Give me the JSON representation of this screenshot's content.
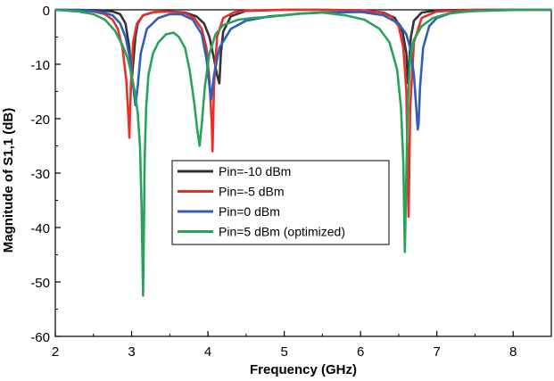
{
  "chart_data": {
    "type": "line",
    "title": "",
    "xlabel": "Frequency (GHz)",
    "ylabel": "Magnitude of S1,1 (dB)",
    "xlim": [
      2,
      8.5
    ],
    "ylim": [
      -60,
      0
    ],
    "xticks": [
      2,
      3,
      4,
      5,
      6,
      7,
      8
    ],
    "yticks": [
      0,
      -10,
      -20,
      -30,
      -40,
      -50,
      -60
    ],
    "grid": false,
    "legend_position": "center-left",
    "series": [
      {
        "name": "Pin=-10 dBm",
        "color": "#333333",
        "x": [
          2.0,
          2.3,
          2.6,
          2.75,
          2.85,
          2.92,
          2.97,
          3.0,
          3.02,
          3.05,
          3.08,
          3.15,
          3.3,
          3.5,
          3.7,
          3.85,
          3.95,
          4.02,
          4.08,
          4.12,
          4.15,
          4.17,
          4.2,
          4.3,
          4.5,
          5.0,
          5.5,
          6.0,
          6.3,
          6.45,
          6.55,
          6.6,
          6.62,
          6.64,
          6.66,
          6.7,
          6.8,
          7.0,
          7.5,
          8.0,
          8.5
        ],
        "y": [
          0,
          0,
          -0.1,
          -0.3,
          -0.8,
          -2.5,
          -7,
          -13,
          -10,
          -5,
          -2.5,
          -1,
          -0.4,
          -0.3,
          -0.5,
          -1.2,
          -2.5,
          -5,
          -9,
          -12,
          -13.5,
          -8,
          -4,
          -1.2,
          -0.2,
          0,
          0,
          -0.1,
          -0.5,
          -1.5,
          -4,
          -8,
          -13.5,
          -9,
          -5,
          -2,
          -0.5,
          -0.1,
          0,
          0,
          0
        ]
      },
      {
        "name": "Pin=-5 dBm",
        "color": "#e8302a",
        "x": [
          2.0,
          2.3,
          2.5,
          2.65,
          2.75,
          2.82,
          2.88,
          2.93,
          2.96,
          2.97,
          2.99,
          3.02,
          3.07,
          3.15,
          3.3,
          3.5,
          3.7,
          3.82,
          3.92,
          3.98,
          4.02,
          4.05,
          4.06,
          4.08,
          4.12,
          4.2,
          4.35,
          4.6,
          5.0,
          5.5,
          6.0,
          6.25,
          6.4,
          6.5,
          6.56,
          6.6,
          6.62,
          6.63,
          6.65,
          6.7,
          6.8,
          7.0,
          7.5,
          8.0,
          8.5
        ],
        "y": [
          0,
          -0.1,
          -0.3,
          -0.8,
          -1.8,
          -3.5,
          -7,
          -13,
          -20,
          -23.5,
          -14,
          -6,
          -2.5,
          -1,
          -0.4,
          -0.3,
          -0.6,
          -1.5,
          -3.5,
          -7,
          -13,
          -21,
          -26,
          -14,
          -5,
          -1.5,
          -0.4,
          -0.1,
          0,
          0,
          -0.1,
          -0.4,
          -1.2,
          -3,
          -7,
          -15,
          -32,
          -38,
          -18,
          -6,
          -1.5,
          -0.3,
          0,
          0,
          0
        ]
      },
      {
        "name": "Pin=0 dBm",
        "color": "#2f5fb8",
        "x": [
          2.0,
          2.4,
          2.6,
          2.75,
          2.85,
          2.92,
          2.98,
          3.02,
          3.05,
          3.08,
          3.12,
          3.2,
          3.35,
          3.5,
          3.65,
          3.8,
          3.92,
          3.98,
          4.02,
          4.04,
          4.08,
          4.15,
          4.3,
          4.5,
          4.8,
          5.0,
          5.2,
          5.5,
          6.0,
          6.3,
          6.5,
          6.6,
          6.65,
          6.7,
          6.73,
          6.75,
          6.76,
          6.78,
          6.82,
          6.9,
          7.0,
          7.2,
          7.5,
          8.0,
          8.5
        ],
        "y": [
          0,
          -0.1,
          -0.4,
          -1,
          -2.5,
          -5,
          -9,
          -14,
          -17.5,
          -14,
          -8,
          -3.5,
          -1.5,
          -0.8,
          -0.8,
          -1.8,
          -4.5,
          -9,
          -14,
          -16.5,
          -12,
          -7,
          -3.5,
          -2,
          -1.2,
          -1,
          -0.7,
          -0.5,
          -0.4,
          -1,
          -2.5,
          -4.5,
          -7,
          -12,
          -18,
          -22,
          -21,
          -14,
          -7,
          -3,
          -1.5,
          -0.5,
          -0.2,
          0,
          0
        ]
      },
      {
        "name": "Pin=5 dBm (optimized)",
        "color": "#2aa35a",
        "x": [
          2.0,
          2.3,
          2.5,
          2.65,
          2.78,
          2.88,
          2.95,
          3.0,
          3.04,
          3.08,
          3.11,
          3.13,
          3.15,
          3.16,
          3.17,
          3.19,
          3.22,
          3.28,
          3.35,
          3.45,
          3.55,
          3.62,
          3.7,
          3.76,
          3.82,
          3.86,
          3.89,
          3.92,
          3.96,
          4.02,
          4.1,
          4.2,
          4.4,
          4.6,
          4.8,
          5.0,
          5.2,
          5.5,
          5.8,
          6.05,
          6.25,
          6.38,
          6.48,
          6.53,
          6.56,
          6.58,
          6.6,
          6.62,
          6.65,
          6.7,
          6.8,
          6.95,
          7.15,
          7.4,
          7.8,
          8.2,
          8.5
        ],
        "y": [
          0,
          -0.3,
          -0.8,
          -1.8,
          -3.8,
          -6.5,
          -9,
          -12,
          -15,
          -19,
          -25,
          -36,
          -52.5,
          -42,
          -28,
          -18,
          -12,
          -8,
          -6,
          -4.5,
          -4.2,
          -5,
          -7,
          -11,
          -17,
          -22,
          -25,
          -21,
          -14,
          -8,
          -4.5,
          -2.8,
          -1.8,
          -1.5,
          -1.3,
          -1,
          -0.7,
          -0.5,
          -1,
          -1.8,
          -3.5,
          -6,
          -11,
          -18,
          -28,
          -44.5,
          -30,
          -17,
          -9,
          -5.5,
          -3,
          -1.5,
          -0.7,
          -0.3,
          -0.1,
          0,
          0
        ]
      }
    ]
  }
}
